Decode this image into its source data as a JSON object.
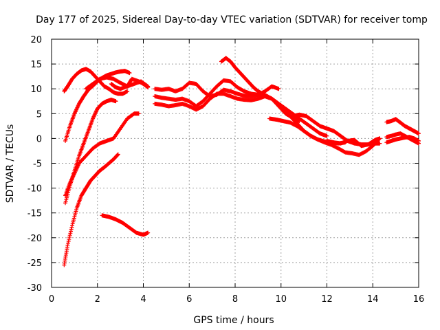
{
  "chart_data": {
    "type": "scatter",
    "title": "Day 177 of 2025, Sidereal Day-to-day VTEC variation (SDTVAR) for receiver tomp",
    "xlabel": "GPS time / hours",
    "ylabel": "SDTVAR / TECUs",
    "xlim": [
      0,
      16
    ],
    "ylim": [
      -30,
      20
    ],
    "xticks": [
      0,
      2,
      4,
      6,
      8,
      10,
      12,
      14,
      16
    ],
    "xtick_labels": [
      "0",
      "2",
      "4",
      "6",
      "8",
      "10",
      "12",
      "14",
      "16"
    ],
    "yticks": [
      -30,
      -25,
      -20,
      -15,
      -10,
      -5,
      0,
      5,
      10,
      15,
      20
    ],
    "ytick_labels": [
      "-30",
      "-25",
      "-20",
      "-15",
      "-10",
      "-5",
      "0",
      "5",
      "10",
      "15",
      "20"
    ],
    "grid": true,
    "marker": "+",
    "color": "#ff0000",
    "series": [
      {
        "name": "arc-1",
        "x": [
          0.55,
          0.7,
          0.9,
          1.1,
          1.3,
          1.5,
          1.7,
          1.9,
          2.1,
          2.3,
          2.5,
          2.7,
          2.9,
          3.1,
          3.3
        ],
        "y": [
          9.5,
          10.5,
          12,
          13,
          13.7,
          14,
          13.5,
          12.5,
          11.5,
          10.5,
          10,
          9.3,
          9,
          9,
          9.5
        ]
      },
      {
        "name": "arc-2",
        "x": [
          0.6,
          0.8,
          1.0,
          1.2,
          1.4,
          1.6,
          1.8,
          2.0,
          2.2,
          2.4,
          2.6,
          2.8,
          3.0,
          3.2,
          3.4
        ],
        "y": [
          -0.5,
          2.5,
          5,
          7,
          8.5,
          9.8,
          10.6,
          11.5,
          12.2,
          12.7,
          13,
          13.3,
          13.5,
          13.6,
          13.2
        ]
      },
      {
        "name": "arc-3",
        "x": [
          0.6,
          0.8,
          1.0,
          1.2,
          1.4,
          1.6,
          1.8,
          2.0,
          2.2,
          2.4,
          2.6,
          2.8
        ],
        "y": [
          -13,
          -9.5,
          -6.5,
          -3.5,
          -1,
          1.5,
          4,
          6,
          7,
          7.5,
          7.8,
          7.5
        ]
      },
      {
        "name": "arc-4",
        "x": [
          0.6,
          0.8,
          1.0,
          1.2,
          1.5,
          1.8,
          2.1,
          2.4,
          2.7,
          3.0,
          3.3,
          3.6,
          3.8
        ],
        "y": [
          -11.5,
          -9,
          -7,
          -5,
          -3.5,
          -2,
          -1,
          -0.5,
          0,
          2,
          4,
          5,
          5
        ]
      },
      {
        "name": "arc-5",
        "x": [
          0.55,
          0.7,
          0.9,
          1.1,
          1.3,
          1.5,
          1.7,
          1.9,
          2.1,
          2.3,
          2.5,
          2.7,
          2.9
        ],
        "y": [
          -25.5,
          -21.5,
          -17.5,
          -14,
          -11.5,
          -10,
          -8.5,
          -7.5,
          -6.5,
          -5.8,
          -5,
          -4.2,
          -3.2
        ]
      },
      {
        "name": "arc-6",
        "x": [
          2.2,
          2.5,
          2.8,
          3.1,
          3.4,
          3.7,
          4.0,
          4.2
        ],
        "y": [
          -15.5,
          -15.8,
          -16.3,
          -17,
          -18,
          -19,
          -19.4,
          -19
        ]
      },
      {
        "name": "arc-7",
        "x": [
          1.5,
          1.8,
          2.1,
          2.4,
          2.7,
          3.0,
          3.3,
          3.6,
          3.9,
          4.2
        ],
        "y": [
          10,
          11,
          12,
          12.3,
          12,
          11.2,
          10.5,
          11,
          11.5,
          10.5
        ]
      },
      {
        "name": "arc-8",
        "x": [
          2.6,
          2.8,
          3.0,
          3.3,
          3.5,
          3.8,
          4.0,
          4.2
        ],
        "y": [
          11,
          10.3,
          10,
          10.5,
          12,
          11.5,
          11,
          10.3
        ]
      },
      {
        "name": "arc-9",
        "x": [
          4.5,
          4.8,
          5.1,
          5.4,
          5.7,
          6.0,
          6.3,
          6.6,
          6.9,
          7.2,
          7.5,
          7.8,
          8.1,
          8.4,
          8.7,
          9.0,
          9.3,
          9.6,
          9.9
        ],
        "y": [
          10,
          9.8,
          10,
          9.5,
          10,
          11.2,
          11,
          9.5,
          8.5,
          8.8,
          9.8,
          9.5,
          9,
          8.6,
          8.5,
          8.8,
          9.5,
          10.5,
          10
        ]
      },
      {
        "name": "arc-10",
        "x": [
          4.5,
          4.8,
          5.1,
          5.4,
          5.7,
          6.0,
          6.3,
          6.6,
          6.9,
          7.2,
          7.5,
          7.8,
          8.1,
          8.4,
          8.7,
          9.0,
          9.3,
          9.6,
          9.9,
          10.2,
          10.5,
          10.8
        ],
        "y": [
          8.5,
          8.2,
          8,
          7.8,
          8,
          7.5,
          6.5,
          7.5,
          9,
          10.5,
          11.7,
          11.5,
          10.3,
          9.5,
          9,
          8.8,
          8.5,
          8,
          6.5,
          5,
          4.2,
          3.5
        ]
      },
      {
        "name": "arc-11",
        "x": [
          4.5,
          4.8,
          5.1,
          5.4,
          5.7,
          6.0,
          6.3,
          6.6,
          6.9,
          7.2,
          7.5,
          7.8,
          8.1,
          8.4,
          8.7,
          9.0,
          9.3,
          9.6,
          9.9,
          10.2,
          10.5,
          10.8,
          11.1,
          11.4,
          11.7,
          12.0
        ],
        "y": [
          7,
          6.8,
          6.5,
          6.7,
          7,
          6.5,
          5.8,
          6.5,
          8,
          9,
          9,
          8.5,
          8,
          7.8,
          7.7,
          8,
          8.5,
          8,
          7,
          6,
          5,
          4,
          3,
          2,
          1,
          0.5
        ]
      },
      {
        "name": "arc-12",
        "x": [
          7.4,
          7.6,
          7.8,
          8.0,
          8.2,
          8.4,
          8.6,
          8.8,
          9.0,
          9.2,
          9.4,
          9.6,
          9.8,
          10.0,
          10.2,
          10.4,
          10.6,
          10.8,
          11.0,
          11.3,
          11.6,
          11.9,
          12.2,
          12.5,
          12.8
        ],
        "y": [
          15.5,
          16.2,
          15.5,
          14.3,
          13.3,
          12.3,
          11.3,
          10.3,
          9.5,
          9,
          8.5,
          8,
          7.3,
          6.5,
          5.5,
          4.5,
          3.5,
          2.5,
          1.5,
          0.5,
          -0.2,
          -0.6,
          -0.8,
          -1,
          -0.8
        ]
      },
      {
        "name": "arc-13",
        "x": [
          9.5,
          9.8,
          10.1,
          10.4,
          10.7,
          11.0,
          11.3,
          11.6,
          11.9,
          12.2,
          12.5,
          12.8,
          13.1,
          13.4,
          13.7,
          14.0,
          14.3
        ],
        "y": [
          4,
          3.8,
          3.5,
          3.2,
          2.5,
          1.5,
          0.5,
          -0.2,
          -0.8,
          -1.3,
          -2,
          -2.8,
          -3,
          -3.3,
          -2.6,
          -1.5,
          0
        ]
      },
      {
        "name": "arc-14",
        "x": [
          10.5,
          10.8,
          11.1,
          11.4,
          11.7,
          12.0,
          12.3,
          12.6,
          12.9,
          13.2,
          13.5,
          13.8,
          14.1,
          14.3
        ],
        "y": [
          4.5,
          4.8,
          4.5,
          3.5,
          2.5,
          2,
          1.5,
          0.5,
          -0.5,
          -1,
          -1.2,
          -1.2,
          -1,
          -1
        ]
      },
      {
        "name": "arc-15",
        "x": [
          12.0,
          12.3,
          12.6,
          12.9,
          13.2,
          13.5,
          13.8,
          14.1,
          14.3
        ],
        "y": [
          -0.5,
          -0.8,
          -1,
          -0.5,
          -0.3,
          -1.5,
          -1.2,
          -0.3,
          0
        ]
      },
      {
        "name": "arc-16",
        "x": [
          14.6,
          14.8,
          15.0,
          15.2,
          15.4,
          15.6,
          15.8,
          16.0
        ],
        "y": [
          3.3,
          3.5,
          3.9,
          3.2,
          2.5,
          2,
          1.5,
          1
        ]
      },
      {
        "name": "arc-17",
        "x": [
          14.6,
          14.8,
          15.0,
          15.2,
          15.4,
          15.6,
          15.8,
          16.0
        ],
        "y": [
          0.3,
          0.5,
          0.8,
          1,
          0.5,
          0,
          -0.5,
          -1
        ]
      },
      {
        "name": "arc-18",
        "x": [
          14.6,
          14.8,
          15.0,
          15.2,
          15.4,
          15.6,
          15.8,
          16.0
        ],
        "y": [
          -0.8,
          -0.5,
          -0.2,
          0,
          0.2,
          0.3,
          0,
          -0.5
        ]
      }
    ]
  }
}
